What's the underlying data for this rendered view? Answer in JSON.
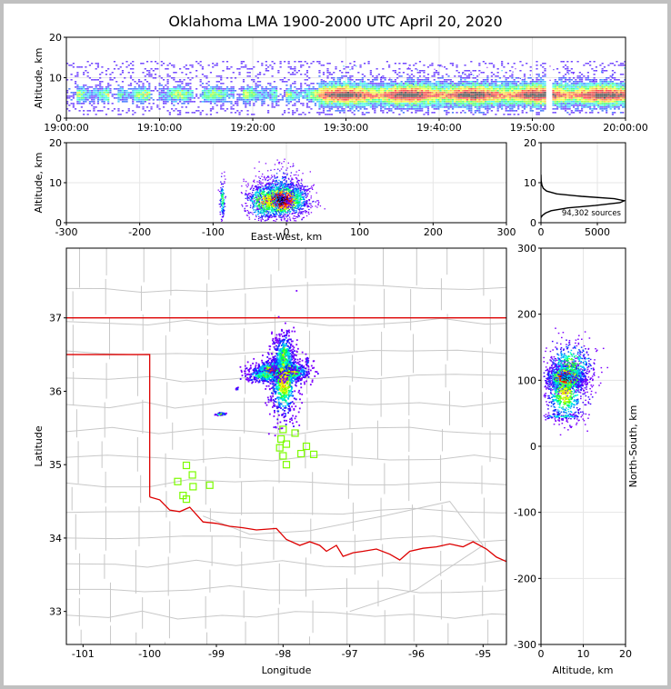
{
  "title": "Oklahoma LMA 1900-2000 UTC April 20, 2020",
  "chart_data": [
    {
      "panel": "altitude-vs-time",
      "type": "heatmap",
      "ylabel": "Altitude, km",
      "xlim": [
        "19:00:00",
        "20:00:00"
      ],
      "ylim": [
        0,
        20
      ],
      "xticks": [
        "19:00:00",
        "19:10:00",
        "19:20:00",
        "19:30:00",
        "19:40:00",
        "19:50:00",
        "20:00:00"
      ],
      "yticks": [
        "0",
        "10",
        "20"
      ],
      "grid": true
    },
    {
      "panel": "altitude-vs-east-west",
      "type": "heatmap",
      "xlabel": "East-West, km",
      "ylabel": "Altitude, km",
      "xlim": [
        -300,
        300
      ],
      "ylim": [
        0,
        20
      ],
      "xticks": [
        "-300",
        "-200",
        "-100",
        "0",
        "100",
        "200",
        "300"
      ],
      "yticks": [
        "0",
        "10",
        "20"
      ],
      "grid": true
    },
    {
      "panel": "altitude-histogram",
      "type": "line",
      "annotation": "94,302 sources",
      "xlim": [
        0,
        7500
      ],
      "ylim": [
        0,
        20
      ],
      "xticks": [
        "0",
        "5000"
      ],
      "yticks": [
        "0",
        "10",
        "20"
      ],
      "series": [
        {
          "x": [
            0,
            120,
            400,
            900,
            2400,
            4800,
            7000,
            7400,
            6500,
            3600,
            1400,
            500,
            200,
            80,
            20,
            0
          ],
          "y": [
            1.3,
            1.8,
            2.4,
            3.0,
            3.7,
            4.3,
            5.0,
            5.5,
            6.0,
            6.6,
            7.2,
            7.9,
            8.6,
            9.4,
            10.5,
            12.0
          ]
        }
      ]
    },
    {
      "panel": "plan-view-map",
      "type": "heatmap",
      "xlabel": "Longitude",
      "ylabel": "Latitude",
      "xlim": [
        -101.25,
        -94.65
      ],
      "ylim": [
        32.55,
        37.95
      ],
      "xticks": [
        "-101",
        "-100",
        "-99",
        "-98",
        "-97",
        "-96",
        "-95"
      ],
      "yticks": [
        "33",
        "34",
        "35",
        "36",
        "37"
      ],
      "stations": [
        [
          -98.0,
          35.48
        ],
        [
          -97.82,
          35.43
        ],
        [
          -98.03,
          35.35
        ],
        [
          -97.95,
          35.28
        ],
        [
          -98.05,
          35.23
        ],
        [
          -97.65,
          35.25
        ],
        [
          -97.73,
          35.15
        ],
        [
          -97.54,
          35.14
        ],
        [
          -98.0,
          35.12
        ],
        [
          -97.95,
          35.0
        ],
        [
          -99.45,
          34.99
        ],
        [
          -99.36,
          34.86
        ],
        [
          -99.58,
          34.77
        ],
        [
          -99.35,
          34.7
        ],
        [
          -99.1,
          34.72
        ],
        [
          -99.5,
          34.58
        ],
        [
          -99.45,
          34.53
        ]
      ]
    },
    {
      "panel": "north-south-vs-altitude",
      "type": "heatmap",
      "xlabel": "Altitude, km",
      "ylabel": "North-South, km",
      "xlim": [
        0,
        20
      ],
      "ylim": [
        -300,
        300
      ],
      "xticks": [
        "0",
        "10",
        "20"
      ],
      "yticks": [
        "-300",
        "-200",
        "-100",
        "0",
        "100",
        "200",
        "300"
      ],
      "grid": true
    }
  ],
  "colors": {
    "border": "#dd0000",
    "county": "#c8c8c8",
    "station": "#7cfc00"
  }
}
